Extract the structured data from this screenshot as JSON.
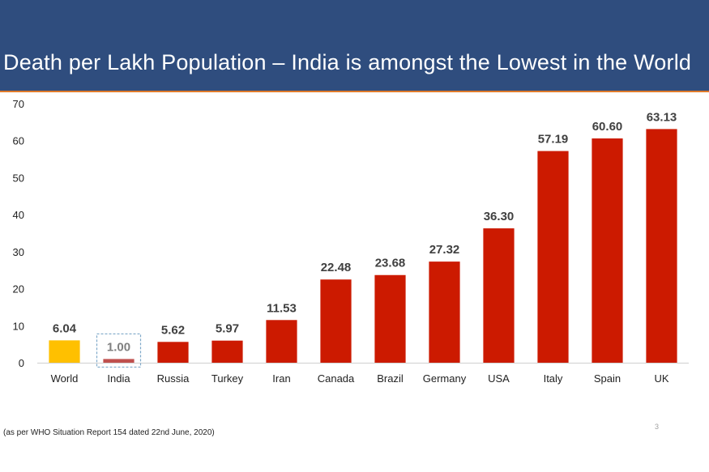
{
  "slide": {
    "title": "Death per Lakh Population – India is amongst the Lowest in the World",
    "source_note": "(as per WHO Situation Report 154 dated 22nd June, 2020)",
    "slide_number": "3",
    "colors": {
      "header": "#2f4d7e",
      "header_line": "#e07b2b"
    }
  },
  "chart_data": {
    "type": "bar",
    "title": "",
    "xlabel": "",
    "ylabel": "",
    "ylim": [
      0,
      70
    ],
    "yticks": [
      0,
      10,
      20,
      30,
      40,
      50,
      60,
      70
    ],
    "grid": false,
    "categories": [
      "World",
      "India",
      "Russia",
      "Turkey",
      "Iran",
      "Canada",
      "Brazil",
      "Germany",
      "USA",
      "Italy",
      "Spain",
      "UK"
    ],
    "values": [
      6.04,
      1.0,
      5.62,
      5.97,
      11.53,
      22.48,
      23.68,
      27.32,
      36.3,
      57.19,
      60.6,
      63.13
    ],
    "data_labels": [
      "6.04",
      "1.00",
      "5.62",
      "5.97",
      "11.53",
      "22.48",
      "23.68",
      "27.32",
      "36.30",
      "57.19",
      "60.60",
      "63.13"
    ],
    "bar_colors": [
      "#ffc000",
      "#c0504d",
      "#cc1a00",
      "#cc1a00",
      "#cc1a00",
      "#cc1a00",
      "#cc1a00",
      "#cc1a00",
      "#cc1a00",
      "#cc1a00",
      "#cc1a00",
      "#cc1a00"
    ],
    "highlight": {
      "category": "India",
      "label_color": "#808080",
      "style": "dashed-box"
    }
  }
}
